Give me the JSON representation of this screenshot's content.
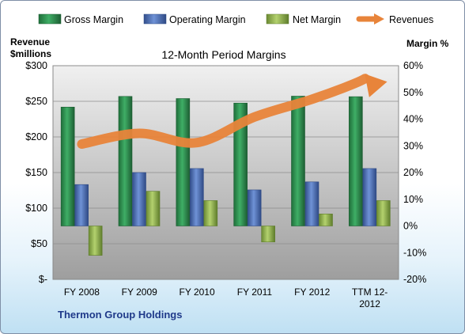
{
  "chart_data": {
    "type": "bar",
    "title": "12-Month Period Margins",
    "footer": "Thermon Group Holdings",
    "categories": [
      "FY 2008",
      "FY 2009",
      "FY 2010",
      "FY 2011",
      "FY 2012",
      "TTM 12-\n2012"
    ],
    "left_axis": {
      "label_line1": "Revenue",
      "label_line2": "$millions",
      "ticks": [
        "$-",
        "$50",
        "$100",
        "$150",
        "$200",
        "$250",
        "$300"
      ],
      "ylim": [
        0,
        300
      ]
    },
    "right_axis": {
      "label": "Margin %",
      "ticks": [
        "-20%",
        "-10%",
        "0%",
        "10%",
        "20%",
        "30%",
        "40%",
        "50%",
        "60%"
      ],
      "ylim": [
        -20,
        60
      ]
    },
    "series": [
      {
        "name": "Gross Margin",
        "type": "bar",
        "axis": "right",
        "color": "#2e8b4f",
        "values": [
          44.5,
          48.5,
          47.7,
          46.0,
          48.6,
          48.4
        ]
      },
      {
        "name": "Operating Margin",
        "type": "bar",
        "axis": "right",
        "color": "#4a6fb5",
        "values": [
          15.5,
          20.0,
          21.5,
          13.5,
          16.5,
          21.5
        ]
      },
      {
        "name": "Net Margin",
        "type": "bar",
        "axis": "right",
        "color": "#8fb54a",
        "values": [
          -11.0,
          13.0,
          9.5,
          -6.0,
          4.5,
          9.5
        ]
      },
      {
        "name": "Revenues",
        "type": "line",
        "axis": "left",
        "color": "#e8843a",
        "values": [
          190,
          205,
          192,
          228,
          253,
          282
        ]
      }
    ],
    "grid": true,
    "legend": "top"
  }
}
